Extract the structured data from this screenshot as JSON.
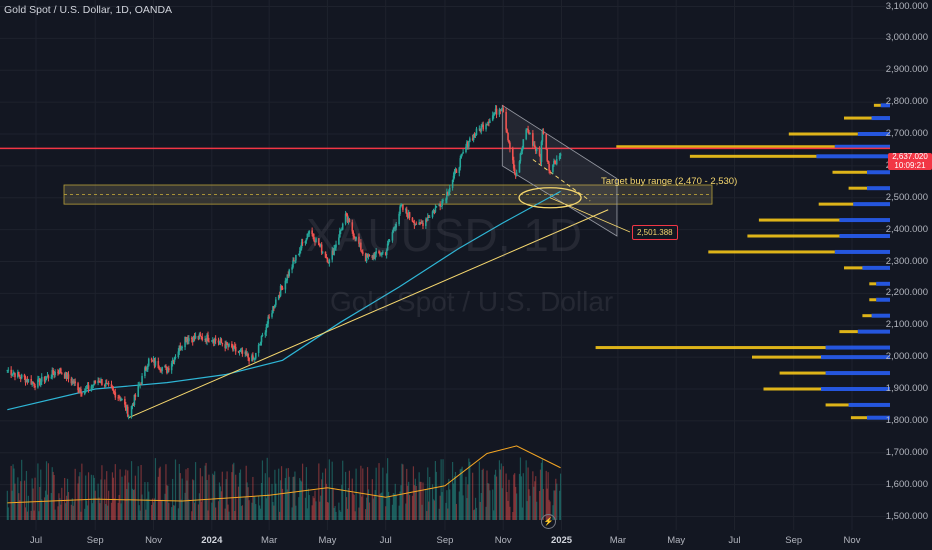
{
  "header": {
    "title": "Gold Spot / U.S. Dollar, 1D, OANDA"
  },
  "watermark": {
    "symbol": "XAUUSD, 1D",
    "name": "Gold Spot / U.S. Dollar"
  },
  "annotations": {
    "target_label": "Target buy range (2,470 - 2,530)",
    "price_box": "2,501.388"
  },
  "current_price_tag": {
    "line1": "2,637.020",
    "line2": "10:09:21"
  },
  "colors": {
    "bg": "#131722",
    "up": "#26a69a",
    "down": "#ef5350",
    "ma": "#2eb6d6",
    "trend": "#f5d76e",
    "resistance": "#f23645",
    "vp_blue": "#2962ff",
    "vp_yellow": "#f5c518"
  },
  "chart_data": {
    "type": "candlestick",
    "title": "Gold Spot / U.S. Dollar, 1D, OANDA",
    "x_ticks": [
      "Jul",
      "Sep",
      "Nov",
      "2024",
      "Mar",
      "May",
      "Jul",
      "Sep",
      "Nov",
      "2025",
      "Mar",
      "May",
      "Jul",
      "Sep",
      "Nov"
    ],
    "x_tick_dates": [
      "2023-07-01",
      "2023-09-01",
      "2023-11-01",
      "2024-01-01",
      "2024-03-01",
      "2024-05-01",
      "2024-07-01",
      "2024-09-01",
      "2024-11-01",
      "2025-01-01",
      "2025-03-01",
      "2025-05-01",
      "2025-07-01",
      "2025-09-01",
      "2025-11-01"
    ],
    "y_ticks": [
      "3,100.000",
      "3,000.000",
      "2,900.000",
      "2,800.000",
      "2,700.000",
      "2,600.000",
      "2,500.000",
      "2,400.000",
      "2,300.000",
      "2,200.000",
      "2,100.000",
      "2,000.000",
      "1,900.000",
      "1,800.000",
      "1,700.000",
      "1,600.000",
      "1,500.000"
    ],
    "ylim": [
      1470,
      3120
    ],
    "price_path": [
      {
        "date": "2023-06-01",
        "close": 1960
      },
      {
        "date": "2023-07-01",
        "close": 1915
      },
      {
        "date": "2023-07-25",
        "close": 1960
      },
      {
        "date": "2023-08-20",
        "close": 1890
      },
      {
        "date": "2023-09-05",
        "close": 1930
      },
      {
        "date": "2023-09-28",
        "close": 1870
      },
      {
        "date": "2023-10-06",
        "close": 1820
      },
      {
        "date": "2023-10-27",
        "close": 1990
      },
      {
        "date": "2023-11-15",
        "close": 1960
      },
      {
        "date": "2023-12-04",
        "close": 2060
      },
      {
        "date": "2024-01-01",
        "close": 2060
      },
      {
        "date": "2024-02-14",
        "close": 1990
      },
      {
        "date": "2024-03-08",
        "close": 2180
      },
      {
        "date": "2024-04-12",
        "close": 2400
      },
      {
        "date": "2024-05-03",
        "close": 2300
      },
      {
        "date": "2024-05-20",
        "close": 2440
      },
      {
        "date": "2024-06-10",
        "close": 2310
      },
      {
        "date": "2024-07-01",
        "close": 2330
      },
      {
        "date": "2024-07-17",
        "close": 2470
      },
      {
        "date": "2024-08-05",
        "close": 2410
      },
      {
        "date": "2024-09-01",
        "close": 2500
      },
      {
        "date": "2024-09-26",
        "close": 2680
      },
      {
        "date": "2024-10-31",
        "close": 2790
      },
      {
        "date": "2024-11-14",
        "close": 2560
      },
      {
        "date": "2024-11-25",
        "close": 2720
      },
      {
        "date": "2024-12-10",
        "close": 2620
      },
      {
        "date": "2024-12-12",
        "close": 2720
      },
      {
        "date": "2024-12-19",
        "close": 2590
      },
      {
        "date": "2024-12-31",
        "close": 2637
      }
    ],
    "moving_average": [
      {
        "date": "2023-06-01",
        "value": 1835
      },
      {
        "date": "2023-09-01",
        "value": 1900
      },
      {
        "date": "2023-11-15",
        "value": 1920
      },
      {
        "date": "2024-01-15",
        "value": 1945
      },
      {
        "date": "2024-03-15",
        "value": 1990
      },
      {
        "date": "2024-05-15",
        "value": 2110
      },
      {
        "date": "2024-07-15",
        "value": 2220
      },
      {
        "date": "2024-09-15",
        "value": 2340
      },
      {
        "date": "2024-10-31",
        "value": 2420
      },
      {
        "date": "2024-12-31",
        "value": 2520
      }
    ],
    "volume_ma": [
      {
        "date": "2023-06-01",
        "value": 0.18
      },
      {
        "date": "2023-09-01",
        "value": 0.22
      },
      {
        "date": "2023-12-01",
        "value": 0.2
      },
      {
        "date": "2024-03-01",
        "value": 0.26
      },
      {
        "date": "2024-05-01",
        "value": 0.34
      },
      {
        "date": "2024-07-01",
        "value": 0.24
      },
      {
        "date": "2024-09-01",
        "value": 0.36
      },
      {
        "date": "2024-10-15",
        "value": 0.7
      },
      {
        "date": "2024-11-15",
        "value": 0.78
      },
      {
        "date": "2024-12-31",
        "value": 0.55
      }
    ],
    "resistance_level": 2655,
    "support_zone": [
      2480,
      2540
    ],
    "target_buy_range": [
      2470,
      2530
    ],
    "trendline": [
      {
        "date": "2023-10-06",
        "price": 1810
      },
      {
        "date": "2025-01-31",
        "price": 2500
      }
    ],
    "channel_upper": [
      {
        "date": "2024-10-31",
        "price": 2790
      },
      {
        "date": "2025-02-28",
        "price": 2560
      }
    ],
    "channel_lower": [
      {
        "date": "2024-10-31",
        "price": 2600
      },
      {
        "date": "2025-02-28",
        "price": 2380
      }
    ],
    "volume_profile": [
      {
        "price": 1810,
        "blue": 0.1,
        "yellow": 0.07
      },
      {
        "price": 1850,
        "blue": 0.18,
        "yellow": 0.1
      },
      {
        "price": 1900,
        "blue": 0.3,
        "yellow": 0.25
      },
      {
        "price": 1950,
        "blue": 0.28,
        "yellow": 0.2
      },
      {
        "price": 2000,
        "blue": 0.3,
        "yellow": 0.3
      },
      {
        "price": 2030,
        "blue": 0.28,
        "yellow": 1.0
      },
      {
        "price": 2080,
        "blue": 0.14,
        "yellow": 0.08
      },
      {
        "price": 2130,
        "blue": 0.08,
        "yellow": 0.04
      },
      {
        "price": 2180,
        "blue": 0.06,
        "yellow": 0.03
      },
      {
        "price": 2230,
        "blue": 0.06,
        "yellow": 0.03
      },
      {
        "price": 2280,
        "blue": 0.12,
        "yellow": 0.08
      },
      {
        "price": 2330,
        "blue": 0.24,
        "yellow": 0.55
      },
      {
        "price": 2380,
        "blue": 0.22,
        "yellow": 0.4
      },
      {
        "price": 2430,
        "blue": 0.22,
        "yellow": 0.35
      },
      {
        "price": 2480,
        "blue": 0.16,
        "yellow": 0.15
      },
      {
        "price": 2530,
        "blue": 0.1,
        "yellow": 0.08
      },
      {
        "price": 2580,
        "blue": 0.1,
        "yellow": 0.15
      },
      {
        "price": 2630,
        "blue": 0.32,
        "yellow": 0.55
      },
      {
        "price": 2660,
        "blue": 0.24,
        "yellow": 0.95
      },
      {
        "price": 2700,
        "blue": 0.14,
        "yellow": 0.3
      },
      {
        "price": 2750,
        "blue": 0.08,
        "yellow": 0.12
      },
      {
        "price": 2790,
        "blue": 0.04,
        "yellow": 0.03
      }
    ]
  }
}
